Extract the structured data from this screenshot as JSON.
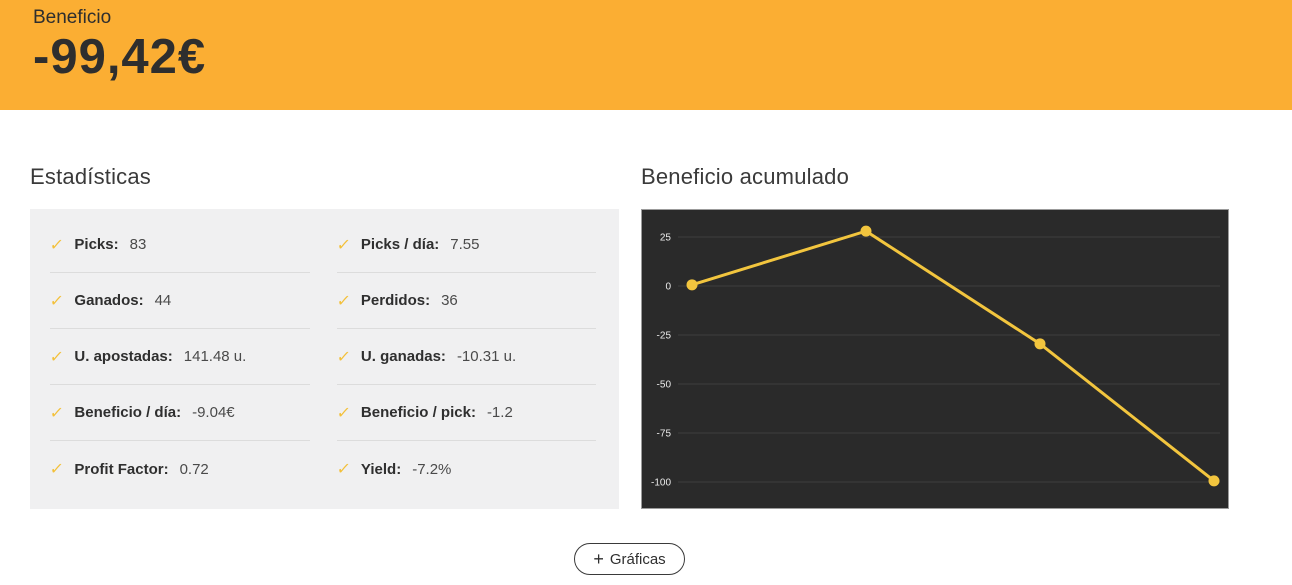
{
  "header": {
    "label": "Beneficio",
    "value": "-99,42€"
  },
  "stats": {
    "title": "Estadísticas",
    "check_icon": "✓",
    "items": [
      {
        "label": "Picks:",
        "value": "83"
      },
      {
        "label": "Picks / día:",
        "value": "7.55"
      },
      {
        "label": "Ganados:",
        "value": "44"
      },
      {
        "label": "Perdidos:",
        "value": "36"
      },
      {
        "label": "U. apostadas:",
        "value": "141.48 u."
      },
      {
        "label": "U. ganadas:",
        "value": "-10.31 u."
      },
      {
        "label": "Beneficio / día:",
        "value": "-9.04€"
      },
      {
        "label": "Beneficio / pick:",
        "value": "-1.2"
      },
      {
        "label": "Profit Factor:",
        "value": "0.72"
      },
      {
        "label": "Yield:",
        "value": "-7.2%"
      }
    ]
  },
  "chart_section": {
    "title": "Beneficio acumulado"
  },
  "chart_data": {
    "type": "line",
    "title": "Beneficio acumulado",
    "x": [
      1,
      2,
      3,
      4
    ],
    "values": [
      0.6,
      28,
      -29.5,
      -99.42
    ],
    "yticks": [
      25,
      0,
      -25,
      -50,
      -75,
      -100
    ],
    "ylim": [
      -113,
      39
    ],
    "grid": true,
    "xlabel": "",
    "ylabel": "",
    "line_color": "#f2c53e",
    "marker_color": "#f2c53e",
    "grid_color": "#3e3e3e",
    "background": "#2a2a2a",
    "tick_color": "#ebebeb"
  },
  "footer": {
    "plus_icon": "+",
    "button_label": "Gráficas"
  },
  "colors": {
    "banner": "#fbae33",
    "accent_gold": "#f3c039",
    "stats_bg": "#f0f0f1",
    "text_dark": "#2f2f2f"
  }
}
